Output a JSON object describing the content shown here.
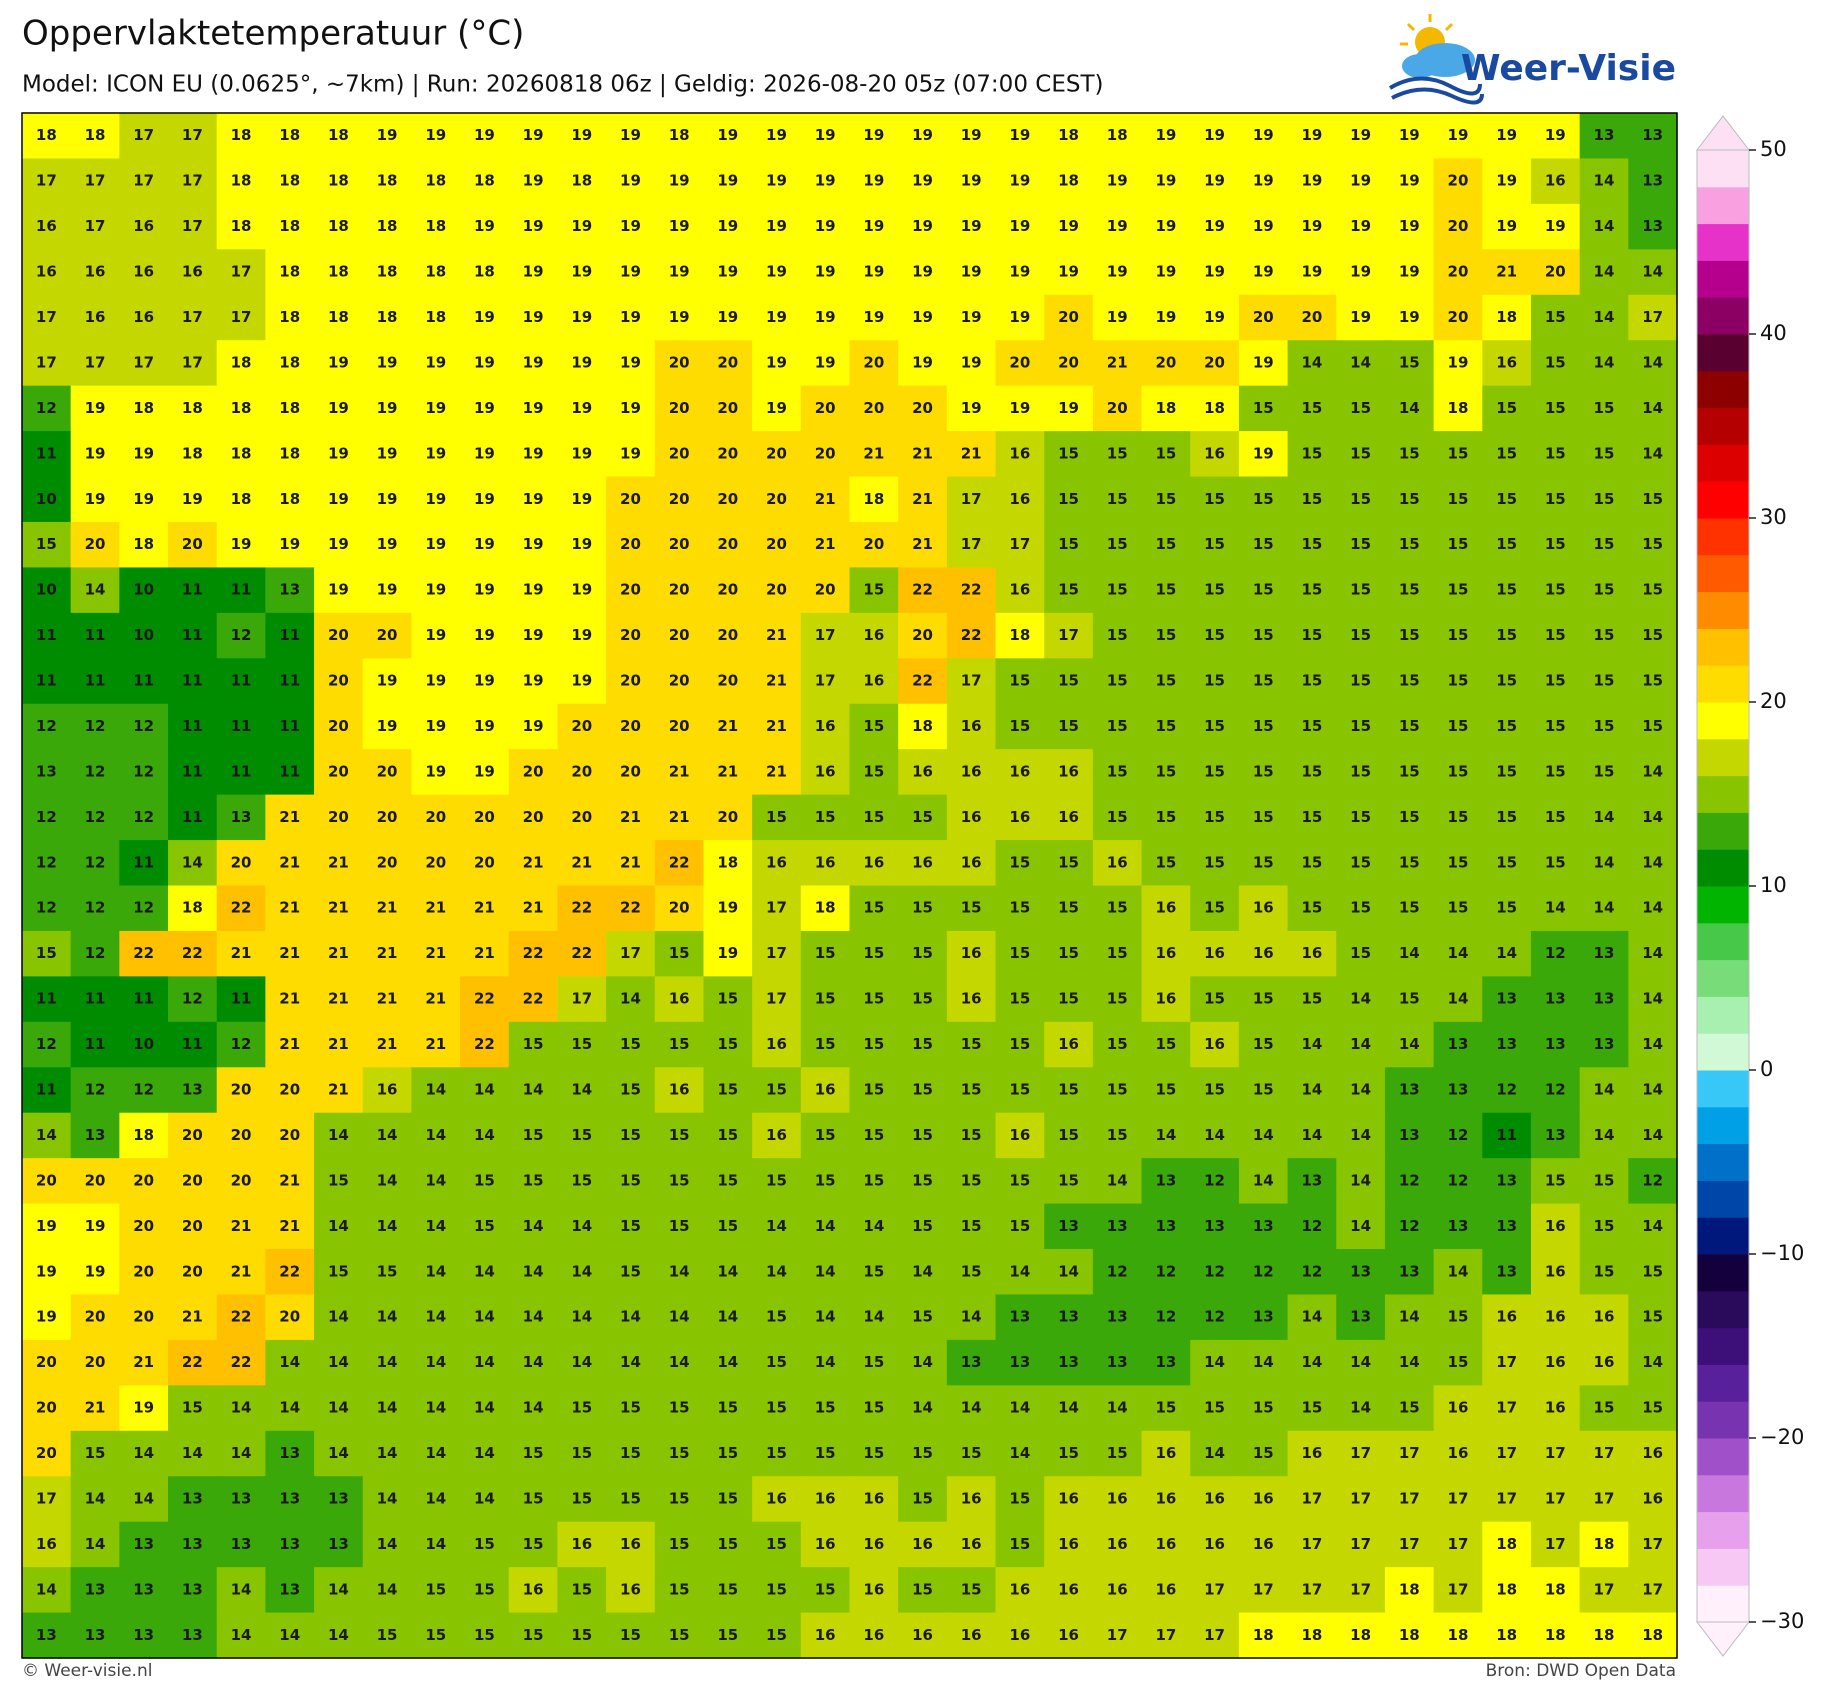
{
  "chart_data": {
    "type": "heatmap",
    "title": "Oppervlaktetemperatuur (°C)",
    "subtitle": "Model: ICON EU (0.0625°, ~7km)  |  Run: 20260818 06z  |  Geldig: 2026-08-20 05z (07:00 CEST)",
    "logo": "Weer-Visie",
    "credit_left": "© Weer-visie.nl",
    "credit_right": "Bron: DWD Open Data",
    "values": [
      [
        18,
        18,
        17,
        17,
        18,
        18,
        18,
        19,
        19,
        19,
        19,
        19,
        19,
        18,
        19,
        19,
        19,
        19,
        19,
        19,
        19,
        18,
        18,
        19,
        19,
        19,
        19,
        19,
        19,
        19,
        19,
        19,
        13,
        13
      ],
      [
        17,
        17,
        17,
        17,
        18,
        18,
        18,
        18,
        18,
        18,
        19,
        18,
        19,
        19,
        19,
        19,
        19,
        19,
        19,
        19,
        19,
        18,
        19,
        19,
        19,
        19,
        19,
        19,
        19,
        20,
        19,
        16,
        14,
        13
      ],
      [
        16,
        17,
        16,
        17,
        18,
        18,
        18,
        18,
        18,
        19,
        19,
        19,
        19,
        19,
        19,
        19,
        19,
        19,
        19,
        19,
        19,
        19,
        19,
        19,
        19,
        19,
        19,
        19,
        19,
        20,
        19,
        19,
        14,
        13
      ],
      [
        16,
        16,
        16,
        16,
        17,
        18,
        18,
        18,
        18,
        18,
        19,
        19,
        19,
        19,
        19,
        19,
        19,
        19,
        19,
        19,
        19,
        19,
        19,
        19,
        19,
        19,
        19,
        19,
        19,
        20,
        21,
        20,
        14,
        14
      ],
      [
        17,
        16,
        16,
        17,
        17,
        18,
        18,
        18,
        18,
        19,
        19,
        19,
        19,
        19,
        19,
        19,
        19,
        19,
        19,
        19,
        19,
        20,
        19,
        19,
        19,
        20,
        20,
        19,
        19,
        20,
        18,
        15,
        14,
        17
      ],
      [
        17,
        17,
        17,
        17,
        18,
        18,
        19,
        19,
        19,
        19,
        19,
        19,
        19,
        20,
        20,
        19,
        19,
        20,
        19,
        19,
        20,
        20,
        21,
        20,
        20,
        19,
        14,
        14,
        15,
        19,
        16,
        15,
        14,
        14
      ],
      [
        12,
        19,
        18,
        18,
        18,
        18,
        19,
        19,
        19,
        19,
        19,
        19,
        19,
        20,
        20,
        19,
        20,
        20,
        20,
        19,
        19,
        19,
        20,
        18,
        18,
        15,
        15,
        15,
        14,
        18,
        15,
        15,
        15,
        14
      ],
      [
        11,
        19,
        19,
        18,
        18,
        18,
        19,
        19,
        19,
        19,
        19,
        19,
        19,
        20,
        20,
        20,
        20,
        21,
        21,
        21,
        16,
        15,
        15,
        15,
        16,
        19,
        15,
        15,
        15,
        15,
        15,
        15,
        15,
        14
      ],
      [
        10,
        19,
        19,
        19,
        18,
        18,
        19,
        19,
        19,
        19,
        19,
        19,
        20,
        20,
        20,
        20,
        21,
        18,
        21,
        17,
        16,
        15,
        15,
        15,
        15,
        15,
        15,
        15,
        15,
        15,
        15,
        15,
        15,
        15
      ],
      [
        15,
        20,
        18,
        20,
        19,
        19,
        19,
        19,
        19,
        19,
        19,
        19,
        20,
        20,
        20,
        20,
        21,
        20,
        21,
        17,
        17,
        15,
        15,
        15,
        15,
        15,
        15,
        15,
        15,
        15,
        15,
        15,
        15,
        15
      ],
      [
        10,
        14,
        10,
        11,
        11,
        13,
        19,
        19,
        19,
        19,
        19,
        19,
        20,
        20,
        20,
        20,
        20,
        15,
        22,
        22,
        16,
        15,
        15,
        15,
        15,
        15,
        15,
        15,
        15,
        15,
        15,
        15,
        15,
        15
      ],
      [
        11,
        11,
        10,
        11,
        12,
        11,
        20,
        20,
        19,
        19,
        19,
        19,
        20,
        20,
        20,
        21,
        17,
        16,
        20,
        22,
        18,
        17,
        15,
        15,
        15,
        15,
        15,
        15,
        15,
        15,
        15,
        15,
        15,
        15
      ],
      [
        11,
        11,
        11,
        11,
        11,
        11,
        20,
        19,
        19,
        19,
        19,
        19,
        20,
        20,
        20,
        21,
        17,
        16,
        22,
        17,
        15,
        15,
        15,
        15,
        15,
        15,
        15,
        15,
        15,
        15,
        15,
        15,
        15,
        15
      ],
      [
        12,
        12,
        12,
        11,
        11,
        11,
        20,
        19,
        19,
        19,
        19,
        20,
        20,
        20,
        21,
        21,
        16,
        15,
        18,
        16,
        15,
        15,
        15,
        15,
        15,
        15,
        15,
        15,
        15,
        15,
        15,
        15,
        15,
        15
      ],
      [
        13,
        12,
        12,
        11,
        11,
        11,
        20,
        20,
        19,
        19,
        20,
        20,
        20,
        21,
        21,
        21,
        16,
        15,
        16,
        16,
        16,
        16,
        15,
        15,
        15,
        15,
        15,
        15,
        15,
        15,
        15,
        15,
        15,
        14
      ],
      [
        12,
        12,
        12,
        11,
        13,
        21,
        20,
        20,
        20,
        20,
        20,
        20,
        21,
        21,
        20,
        15,
        15,
        15,
        15,
        16,
        16,
        16,
        15,
        15,
        15,
        15,
        15,
        15,
        15,
        15,
        15,
        15,
        14,
        14
      ],
      [
        12,
        12,
        11,
        14,
        20,
        21,
        21,
        20,
        20,
        20,
        21,
        21,
        21,
        22,
        18,
        16,
        16,
        16,
        16,
        16,
        15,
        15,
        16,
        15,
        15,
        15,
        15,
        15,
        15,
        15,
        15,
        15,
        14,
        14
      ],
      [
        12,
        12,
        12,
        18,
        22,
        21,
        21,
        21,
        21,
        21,
        21,
        22,
        22,
        20,
        19,
        17,
        18,
        15,
        15,
        15,
        15,
        15,
        15,
        16,
        15,
        16,
        15,
        15,
        15,
        15,
        15,
        14,
        14,
        14
      ],
      [
        15,
        12,
        22,
        22,
        21,
        21,
        21,
        21,
        21,
        21,
        22,
        22,
        17,
        15,
        19,
        17,
        15,
        15,
        15,
        16,
        15,
        15,
        15,
        16,
        16,
        16,
        16,
        15,
        14,
        14,
        14,
        12,
        13,
        14
      ],
      [
        11,
        11,
        11,
        12,
        11,
        21,
        21,
        21,
        21,
        22,
        22,
        17,
        14,
        16,
        15,
        17,
        15,
        15,
        15,
        16,
        15,
        15,
        15,
        16,
        15,
        15,
        15,
        14,
        15,
        14,
        13,
        13,
        13,
        14
      ],
      [
        12,
        11,
        10,
        11,
        12,
        21,
        21,
        21,
        21,
        22,
        15,
        15,
        15,
        15,
        15,
        16,
        15,
        15,
        15,
        15,
        15,
        16,
        15,
        15,
        16,
        15,
        14,
        14,
        14,
        13,
        13,
        13,
        13,
        14
      ],
      [
        11,
        12,
        12,
        13,
        20,
        20,
        21,
        16,
        14,
        14,
        14,
        14,
        15,
        16,
        15,
        15,
        16,
        15,
        15,
        15,
        15,
        15,
        15,
        15,
        15,
        15,
        14,
        14,
        13,
        13,
        12,
        12,
        14,
        14
      ],
      [
        14,
        13,
        18,
        20,
        20,
        20,
        14,
        14,
        14,
        14,
        15,
        15,
        15,
        15,
        15,
        16,
        15,
        15,
        15,
        15,
        16,
        15,
        15,
        14,
        14,
        14,
        14,
        14,
        13,
        12,
        11,
        13,
        14,
        14
      ],
      [
        20,
        20,
        20,
        20,
        20,
        21,
        15,
        14,
        14,
        15,
        15,
        15,
        15,
        15,
        15,
        15,
        15,
        15,
        15,
        15,
        15,
        15,
        14,
        13,
        12,
        14,
        13,
        14,
        12,
        12,
        13,
        15,
        15,
        12
      ],
      [
        19,
        19,
        20,
        20,
        21,
        21,
        14,
        14,
        14,
        15,
        14,
        14,
        15,
        15,
        15,
        14,
        14,
        14,
        15,
        15,
        15,
        13,
        13,
        13,
        13,
        13,
        12,
        14,
        12,
        13,
        13,
        16,
        15,
        14
      ],
      [
        19,
        19,
        20,
        20,
        21,
        22,
        15,
        15,
        14,
        14,
        14,
        14,
        15,
        14,
        14,
        14,
        14,
        15,
        14,
        15,
        14,
        14,
        12,
        12,
        12,
        12,
        12,
        13,
        13,
        14,
        13,
        16,
        15,
        15
      ],
      [
        19,
        20,
        20,
        21,
        22,
        20,
        14,
        14,
        14,
        14,
        14,
        14,
        14,
        14,
        14,
        15,
        14,
        14,
        15,
        14,
        13,
        13,
        13,
        12,
        12,
        13,
        14,
        13,
        14,
        15,
        16,
        16,
        16,
        15
      ],
      [
        20,
        20,
        21,
        22,
        22,
        14,
        14,
        14,
        14,
        14,
        14,
        14,
        14,
        14,
        14,
        15,
        14,
        15,
        14,
        13,
        13,
        13,
        13,
        13,
        14,
        14,
        14,
        14,
        14,
        15,
        17,
        16,
        16,
        14
      ],
      [
        20,
        21,
        19,
        15,
        14,
        14,
        14,
        14,
        14,
        14,
        14,
        15,
        15,
        15,
        15,
        15,
        15,
        15,
        14,
        14,
        14,
        14,
        14,
        15,
        15,
        15,
        15,
        14,
        15,
        16,
        17,
        16,
        15,
        15
      ],
      [
        20,
        15,
        14,
        14,
        14,
        13,
        14,
        14,
        14,
        14,
        15,
        15,
        15,
        15,
        15,
        15,
        15,
        15,
        15,
        15,
        14,
        15,
        15,
        16,
        14,
        15,
        16,
        17,
        17,
        16,
        17,
        17,
        17,
        16
      ],
      [
        17,
        14,
        14,
        13,
        13,
        13,
        13,
        14,
        14,
        14,
        15,
        15,
        15,
        15,
        15,
        16,
        16,
        16,
        15,
        16,
        15,
        16,
        16,
        16,
        16,
        16,
        17,
        17,
        17,
        17,
        17,
        17,
        17,
        16
      ],
      [
        16,
        14,
        13,
        13,
        13,
        13,
        13,
        14,
        14,
        15,
        15,
        16,
        16,
        15,
        15,
        15,
        16,
        16,
        16,
        16,
        15,
        16,
        16,
        16,
        16,
        16,
        17,
        17,
        17,
        17,
        18,
        17,
        18,
        17
      ],
      [
        14,
        13,
        13,
        13,
        14,
        13,
        14,
        14,
        15,
        15,
        16,
        15,
        16,
        15,
        15,
        15,
        15,
        16,
        15,
        15,
        16,
        16,
        16,
        16,
        17,
        17,
        17,
        17,
        18,
        17,
        18,
        18,
        17,
        17
      ],
      [
        13,
        13,
        13,
        13,
        14,
        14,
        14,
        15,
        15,
        15,
        15,
        15,
        15,
        15,
        15,
        15,
        16,
        16,
        16,
        16,
        16,
        16,
        17,
        17,
        17,
        18,
        18,
        18,
        18,
        18,
        18,
        18,
        18,
        18
      ]
    ],
    "colorbar": {
      "lim": [
        -30,
        50
      ],
      "ticks": [
        {
          "value": -30,
          "label": "−30"
        },
        {
          "value": -20,
          "label": "−20"
        },
        {
          "value": -10,
          "label": "−10"
        },
        0,
        10,
        20,
        30,
        40,
        50
      ],
      "colors": [
        "#fff0fc",
        "#f8c8f4",
        "#e6a0ec",
        "#c878dc",
        "#a050c8",
        "#7834b0",
        "#58209a",
        "#3c1078",
        "#2a0a5a",
        "#14003c",
        "#00187c",
        "#0046a8",
        "#0070c8",
        "#00a0e6",
        "#38c8f8",
        "#d2f9d6",
        "#a8f0b0",
        "#78dd78",
        "#48c848",
        "#00b400",
        "#008c00",
        "#3aa808",
        "#88c400",
        "#c4d800",
        "#ffff00",
        "#ffdc00",
        "#ffc000",
        "#ff8c00",
        "#ff5a00",
        "#ff3200",
        "#ff0000",
        "#dc0000",
        "#b40000",
        "#8c0000",
        "#5a0030",
        "#8c0064",
        "#b4008c",
        "#e632c8",
        "#f8a0e0",
        "#fde0f4"
      ]
    }
  }
}
